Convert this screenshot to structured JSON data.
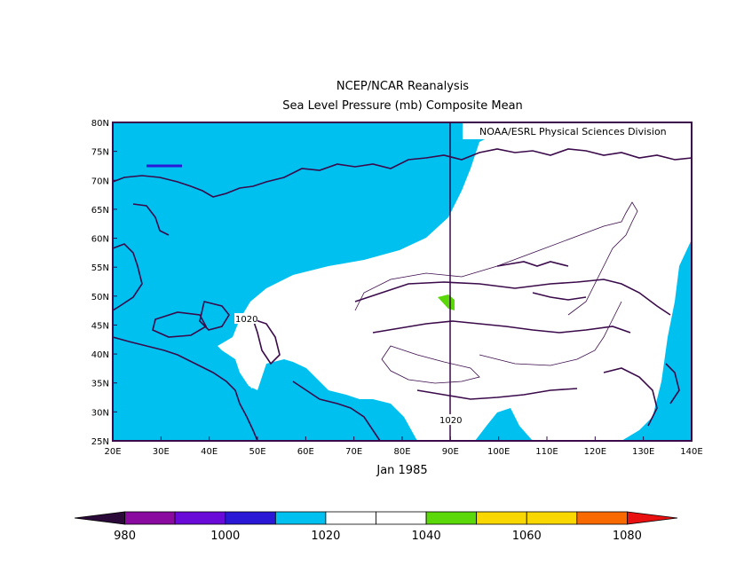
{
  "title": "NCEP/NCAR Reanalysis",
  "subtitle": "Sea Level Pressure (mb) Composite Mean",
  "credit": "NOAA/ESRL Physical Sciences Division",
  "date_label": "Jan 1985",
  "contour_labels": [
    "1020",
    "1020"
  ],
  "map": {
    "lon_ticks": [
      "20E",
      "30E",
      "40E",
      "50E",
      "60E",
      "70E",
      "80E",
      "90E",
      "100E",
      "110E",
      "120E",
      "130E",
      "140E"
    ],
    "lat_ticks": [
      "80N",
      "75N",
      "70N",
      "65N",
      "60N",
      "55N",
      "50N",
      "45N",
      "40N",
      "35N",
      "30N",
      "25N"
    ],
    "lon_range": [
      20,
      140
    ],
    "lat_range": [
      25,
      80
    ]
  },
  "colorbar": {
    "labels": [
      "980",
      "1000",
      "1020",
      "1040",
      "1060",
      "1080"
    ],
    "colors": [
      "#2b0a3a",
      "#8a0aa0",
      "#6a0ad8",
      "#2a18d6",
      "#00c0f0",
      "#ffffff",
      "#ffffff",
      "#5ad80a",
      "#f8d800",
      "#f8d800",
      "#f86a00",
      "#e81010"
    ]
  },
  "fill_colors": {
    "low": "#00c0f0",
    "mid": "#ffffff",
    "high": "#5ad80a",
    "coast": "#3a0a4a"
  }
}
